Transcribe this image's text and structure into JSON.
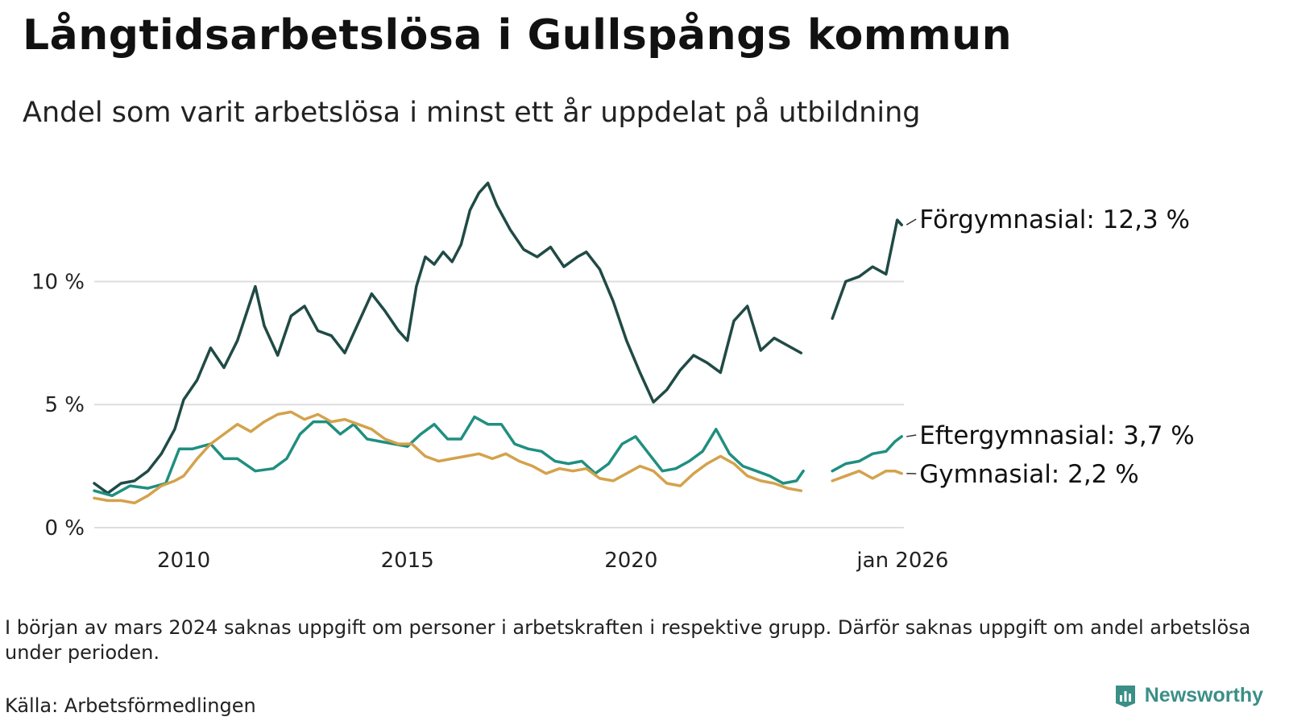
{
  "title": "Långtidsarbetslösa i Gullspångs kommun",
  "subtitle": "Andel som varit arbetslösa i minst ett år uppdelat på utbildning",
  "note": "I början av mars 2024 saknas uppgift om personer i arbetskraften i respektive grupp. Därför saknas uppgift om andel arbetslösa under perioden.",
  "source": "Källa: Arbetsförmedlingen",
  "brand": "Newsworthy",
  "chart_data": {
    "type": "line",
    "title": "Långtidsarbetslösa i Gullspångs kommun",
    "xlabel": "",
    "ylabel": "",
    "xlim": [
      2008.0,
      2026.1
    ],
    "ylim": [
      0,
      14.4
    ],
    "y_ticks": [
      0,
      5,
      10
    ],
    "y_tick_labels": [
      "0 %",
      "5 %",
      "10 %"
    ],
    "x_ticks": [
      2010,
      2015,
      2020,
      2026.0
    ],
    "x_tick_labels": [
      "2010",
      "2015",
      "2020",
      "jan 2026"
    ],
    "grid": "horizontal",
    "gap_note": "No data from about Mar 2024 to Jul 2024",
    "series": [
      {
        "name": "Förgymnasial",
        "end_label": "Förgymnasial: 12,3 %",
        "color": "#204a45",
        "points": [
          [
            2008.0,
            1.8
          ],
          [
            2008.3,
            1.4
          ],
          [
            2008.6,
            1.8
          ],
          [
            2008.9,
            1.9
          ],
          [
            2009.2,
            2.3
          ],
          [
            2009.5,
            3.0
          ],
          [
            2009.8,
            4.0
          ],
          [
            2010.0,
            5.2
          ],
          [
            2010.3,
            6.0
          ],
          [
            2010.6,
            7.3
          ],
          [
            2010.9,
            6.5
          ],
          [
            2011.2,
            7.6
          ],
          [
            2011.6,
            9.8
          ],
          [
            2011.8,
            8.2
          ],
          [
            2012.1,
            7.0
          ],
          [
            2012.4,
            8.6
          ],
          [
            2012.7,
            9.0
          ],
          [
            2013.0,
            8.0
          ],
          [
            2013.3,
            7.8
          ],
          [
            2013.6,
            7.1
          ],
          [
            2013.9,
            8.3
          ],
          [
            2014.2,
            9.5
          ],
          [
            2014.5,
            8.8
          ],
          [
            2014.8,
            8.0
          ],
          [
            2015.0,
            7.6
          ],
          [
            2015.2,
            9.8
          ],
          [
            2015.4,
            11.0
          ],
          [
            2015.6,
            10.7
          ],
          [
            2015.8,
            11.2
          ],
          [
            2016.0,
            10.8
          ],
          [
            2016.2,
            11.5
          ],
          [
            2016.4,
            12.9
          ],
          [
            2016.6,
            13.6
          ],
          [
            2016.8,
            14.0
          ],
          [
            2017.0,
            13.1
          ],
          [
            2017.3,
            12.1
          ],
          [
            2017.6,
            11.3
          ],
          [
            2017.9,
            11.0
          ],
          [
            2018.2,
            11.4
          ],
          [
            2018.5,
            10.6
          ],
          [
            2018.8,
            11.0
          ],
          [
            2019.0,
            11.2
          ],
          [
            2019.3,
            10.5
          ],
          [
            2019.6,
            9.2
          ],
          [
            2019.9,
            7.6
          ],
          [
            2020.2,
            6.3
          ],
          [
            2020.5,
            5.1
          ],
          [
            2020.8,
            5.6
          ],
          [
            2021.1,
            6.4
          ],
          [
            2021.4,
            7.0
          ],
          [
            2021.7,
            6.7
          ],
          [
            2022.0,
            6.3
          ],
          [
            2022.3,
            8.4
          ],
          [
            2022.6,
            9.0
          ],
          [
            2022.9,
            7.2
          ],
          [
            2023.2,
            7.7
          ],
          [
            2023.5,
            7.4
          ],
          [
            2023.8,
            7.1
          ],
          [
            2024.0,
            null
          ],
          [
            2024.4,
            null
          ],
          [
            2024.5,
            8.5
          ],
          [
            2024.8,
            10.0
          ],
          [
            2025.1,
            10.2
          ],
          [
            2025.4,
            10.6
          ],
          [
            2025.7,
            10.3
          ],
          [
            2025.95,
            12.5
          ],
          [
            2026.05,
            12.3
          ]
        ]
      },
      {
        "name": "Eftergymnasial",
        "end_label": "Eftergymnasial:  3,7 %",
        "color": "#1f8f80",
        "points": [
          [
            2008.0,
            1.5
          ],
          [
            2008.4,
            1.3
          ],
          [
            2008.8,
            1.7
          ],
          [
            2009.2,
            1.6
          ],
          [
            2009.6,
            1.8
          ],
          [
            2009.9,
            3.2
          ],
          [
            2010.2,
            3.2
          ],
          [
            2010.6,
            3.4
          ],
          [
            2010.9,
            2.8
          ],
          [
            2011.2,
            2.8
          ],
          [
            2011.6,
            2.3
          ],
          [
            2012.0,
            2.4
          ],
          [
            2012.3,
            2.8
          ],
          [
            2012.6,
            3.8
          ],
          [
            2012.9,
            4.3
          ],
          [
            2013.2,
            4.3
          ],
          [
            2013.5,
            3.8
          ],
          [
            2013.8,
            4.2
          ],
          [
            2014.1,
            3.6
          ],
          [
            2014.4,
            3.5
          ],
          [
            2014.7,
            3.4
          ],
          [
            2015.0,
            3.3
          ],
          [
            2015.3,
            3.8
          ],
          [
            2015.6,
            4.2
          ],
          [
            2015.9,
            3.6
          ],
          [
            2016.2,
            3.6
          ],
          [
            2016.5,
            4.5
          ],
          [
            2016.8,
            4.2
          ],
          [
            2017.1,
            4.2
          ],
          [
            2017.4,
            3.4
          ],
          [
            2017.7,
            3.2
          ],
          [
            2018.0,
            3.1
          ],
          [
            2018.3,
            2.7
          ],
          [
            2018.6,
            2.6
          ],
          [
            2018.9,
            2.7
          ],
          [
            2019.2,
            2.2
          ],
          [
            2019.5,
            2.6
          ],
          [
            2019.8,
            3.4
          ],
          [
            2020.1,
            3.7
          ],
          [
            2020.4,
            3.0
          ],
          [
            2020.7,
            2.3
          ],
          [
            2021.0,
            2.4
          ],
          [
            2021.3,
            2.7
          ],
          [
            2021.6,
            3.1
          ],
          [
            2021.9,
            4.0
          ],
          [
            2022.2,
            3.0
          ],
          [
            2022.5,
            2.5
          ],
          [
            2022.8,
            2.3
          ],
          [
            2023.1,
            2.1
          ],
          [
            2023.4,
            1.8
          ],
          [
            2023.7,
            1.9
          ],
          [
            2023.85,
            2.3
          ],
          [
            2024.0,
            null
          ],
          [
            2024.4,
            null
          ],
          [
            2024.5,
            2.3
          ],
          [
            2024.8,
            2.6
          ],
          [
            2025.1,
            2.7
          ],
          [
            2025.4,
            3.0
          ],
          [
            2025.7,
            3.1
          ],
          [
            2025.9,
            3.5
          ],
          [
            2026.05,
            3.7
          ]
        ]
      },
      {
        "name": "Gymnasial",
        "end_label": "Gymnasial:  2,2 %",
        "color": "#d4a24c",
        "points": [
          [
            2008.0,
            1.2
          ],
          [
            2008.3,
            1.1
          ],
          [
            2008.6,
            1.1
          ],
          [
            2008.9,
            1.0
          ],
          [
            2009.2,
            1.3
          ],
          [
            2009.5,
            1.7
          ],
          [
            2009.8,
            1.9
          ],
          [
            2010.0,
            2.1
          ],
          [
            2010.3,
            2.8
          ],
          [
            2010.6,
            3.4
          ],
          [
            2010.9,
            3.8
          ],
          [
            2011.2,
            4.2
          ],
          [
            2011.5,
            3.9
          ],
          [
            2011.8,
            4.3
          ],
          [
            2012.1,
            4.6
          ],
          [
            2012.4,
            4.7
          ],
          [
            2012.7,
            4.4
          ],
          [
            2013.0,
            4.6
          ],
          [
            2013.3,
            4.3
          ],
          [
            2013.6,
            4.4
          ],
          [
            2013.9,
            4.2
          ],
          [
            2014.2,
            4.0
          ],
          [
            2014.5,
            3.6
          ],
          [
            2014.8,
            3.4
          ],
          [
            2015.1,
            3.4
          ],
          [
            2015.4,
            2.9
          ],
          [
            2015.7,
            2.7
          ],
          [
            2016.0,
            2.8
          ],
          [
            2016.3,
            2.9
          ],
          [
            2016.6,
            3.0
          ],
          [
            2016.9,
            2.8
          ],
          [
            2017.2,
            3.0
          ],
          [
            2017.5,
            2.7
          ],
          [
            2017.8,
            2.5
          ],
          [
            2018.1,
            2.2
          ],
          [
            2018.4,
            2.4
          ],
          [
            2018.7,
            2.3
          ],
          [
            2019.0,
            2.4
          ],
          [
            2019.3,
            2.0
          ],
          [
            2019.6,
            1.9
          ],
          [
            2019.9,
            2.2
          ],
          [
            2020.2,
            2.5
          ],
          [
            2020.5,
            2.3
          ],
          [
            2020.8,
            1.8
          ],
          [
            2021.1,
            1.7
          ],
          [
            2021.4,
            2.2
          ],
          [
            2021.7,
            2.6
          ],
          [
            2022.0,
            2.9
          ],
          [
            2022.3,
            2.6
          ],
          [
            2022.6,
            2.1
          ],
          [
            2022.9,
            1.9
          ],
          [
            2023.2,
            1.8
          ],
          [
            2023.5,
            1.6
          ],
          [
            2023.8,
            1.5
          ],
          [
            2024.0,
            null
          ],
          [
            2024.4,
            null
          ],
          [
            2024.5,
            1.9
          ],
          [
            2024.8,
            2.1
          ],
          [
            2025.1,
            2.3
          ],
          [
            2025.4,
            2.0
          ],
          [
            2025.7,
            2.3
          ],
          [
            2025.9,
            2.3
          ],
          [
            2026.05,
            2.2
          ]
        ]
      }
    ]
  }
}
